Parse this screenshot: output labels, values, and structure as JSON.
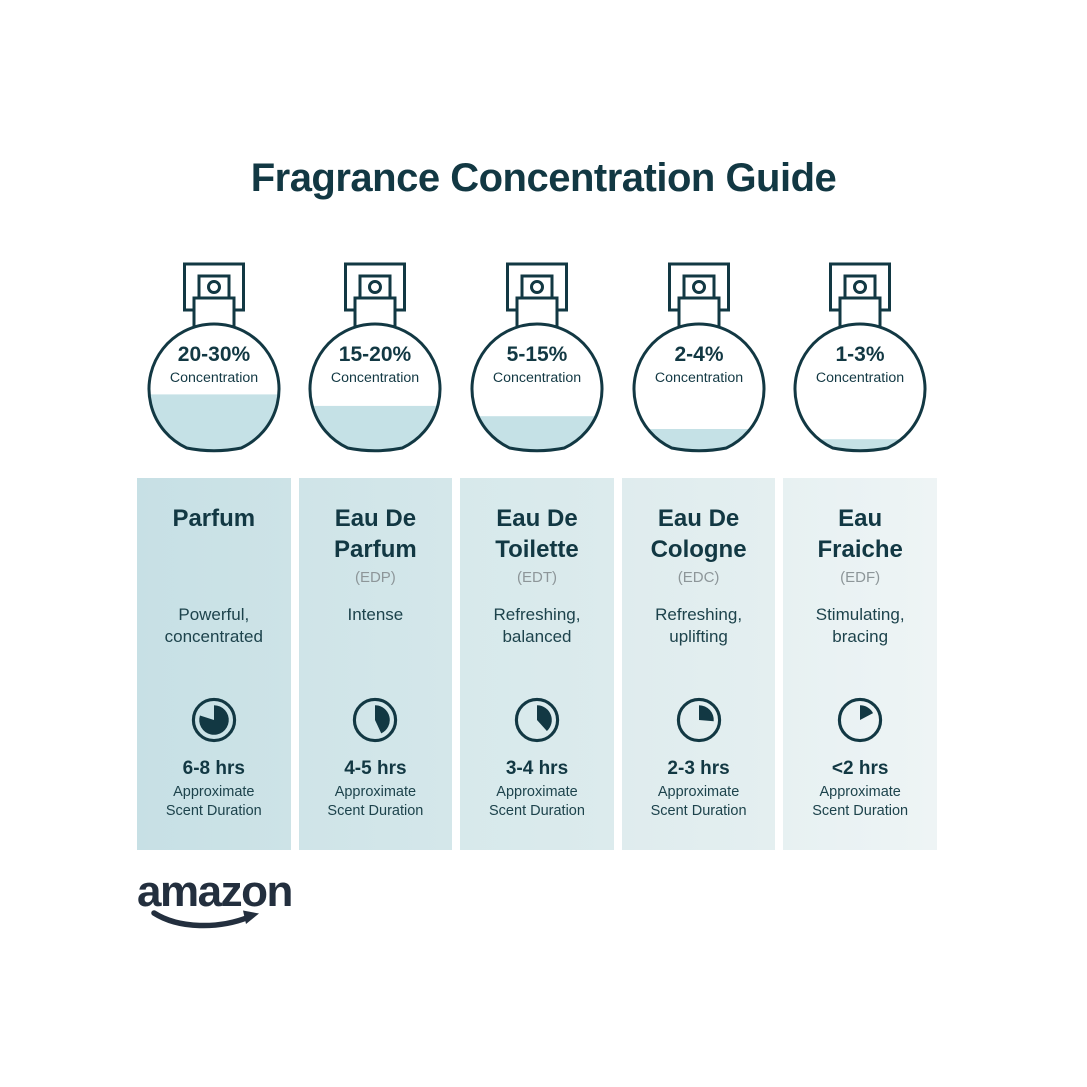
{
  "title": "Fragrance Concentration Guide",
  "concentration_label": "Concentration",
  "duration_label": "Approximate\nScent Duration",
  "footer": {
    "brand": "amazon"
  },
  "colors": {
    "ink": "#123843",
    "liquid": "#c5e1e6",
    "abbr_gray": "#8d9699",
    "brand_navy": "#232f3e"
  },
  "columns": [
    {
      "name": "Parfum",
      "abbr": "",
      "concentration": "20-30%",
      "description": "Powerful,\nconcentrated",
      "duration": "6-8 hrs",
      "fill_percent": 45,
      "clock_degrees": 288,
      "bg_left": "#c7e0e5",
      "bg_right": "#cde3e7"
    },
    {
      "name": "Eau De\nParfum",
      "abbr": "(EDP)",
      "concentration": "15-20%",
      "description": "Intense",
      "duration": "4-5 hrs",
      "fill_percent": 36,
      "clock_degrees": 155,
      "bg_left": "#cfe4e8",
      "bg_right": "#d4e7ea"
    },
    {
      "name": "Eau De\nToilette",
      "abbr": "(EDT)",
      "concentration": "5-15%",
      "description": "Refreshing,\nbalanced",
      "duration": "3-4 hrs",
      "fill_percent": 28,
      "clock_degrees": 138,
      "bg_left": "#d7e9eb",
      "bg_right": "#dcebed"
    },
    {
      "name": "Eau De\nCologne",
      "abbr": "(EDC)",
      "concentration": "2-4%",
      "description": "Refreshing,\nuplifting",
      "duration": "2-3 hrs",
      "fill_percent": 18,
      "clock_degrees": 95,
      "bg_left": "#dfecee",
      "bg_right": "#e4eff0"
    },
    {
      "name": "Eau\nFraiche",
      "abbr": "(EDF)",
      "concentration": "1-3%",
      "description": "Stimulating,\nbracing",
      "duration": "<2 hrs",
      "fill_percent": 10,
      "clock_degrees": 62,
      "bg_left": "#e7f1f2",
      "bg_right": "#eef4f5"
    }
  ]
}
